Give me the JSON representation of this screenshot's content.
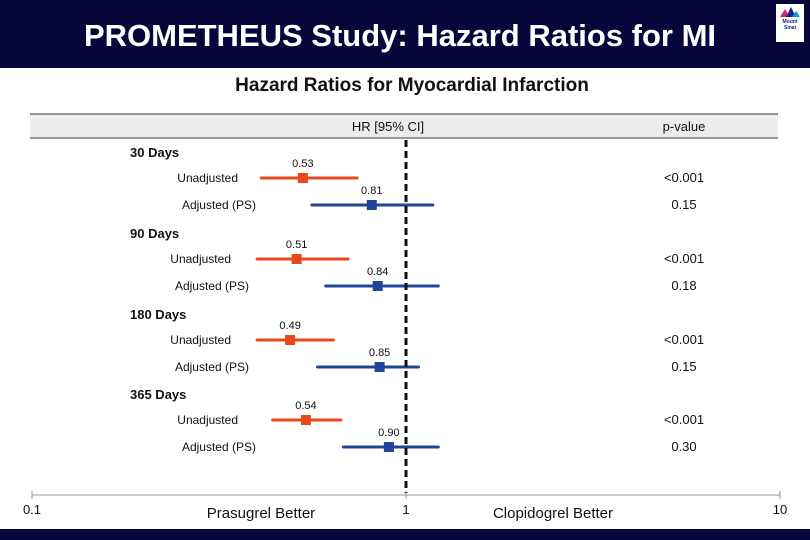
{
  "slide": {
    "title": "PROMETHEUS Study: Hazard Ratios for MI",
    "logo_text": "Mount Sinai"
  },
  "colors": {
    "header_bg": "#06063a",
    "unadjusted": "#e8481c",
    "adjusted": "#1f4596",
    "table_header_bg": "#ececec"
  },
  "chart_data": {
    "type": "forest",
    "title": "Hazard Ratios for Myocardial Infarction",
    "column_headers": {
      "estimate": "HR [95% CI]",
      "pvalue": "p-value"
    },
    "x_scale": "log",
    "xlim": [
      0.1,
      10
    ],
    "x_ticks": [
      {
        "value": 0.1,
        "label": "0.1"
      },
      {
        "value": 1,
        "label": "1"
      },
      {
        "value": 10,
        "label": "10"
      }
    ],
    "reference_line": 1,
    "left_annotation": "Prasugrel Better",
    "right_annotation": "Clopidogrel Better",
    "groups": [
      {
        "label": "30 Days",
        "rows": [
          {
            "label": "Unadjusted",
            "series": "unadjusted",
            "hr": 0.53,
            "hr_label": "0.53",
            "ci": [
              0.41,
              0.74
            ],
            "p": "<0.001"
          },
          {
            "label": "Adjusted (PS)",
            "series": "adjusted",
            "hr": 0.81,
            "hr_label": "0.81",
            "ci": [
              0.56,
              1.18
            ],
            "p": "0.15"
          }
        ]
      },
      {
        "label": "90 Days",
        "rows": [
          {
            "label": "Unadjusted",
            "series": "unadjusted",
            "hr": 0.51,
            "hr_label": "0.51",
            "ci": [
              0.4,
              0.7
            ],
            "p": "<0.001"
          },
          {
            "label": "Adjusted (PS)",
            "series": "adjusted",
            "hr": 0.84,
            "hr_label": "0.84",
            "ci": [
              0.61,
              1.22
            ],
            "p": "0.18"
          }
        ]
      },
      {
        "label": "180 Days",
        "rows": [
          {
            "label": "Unadjusted",
            "series": "unadjusted",
            "hr": 0.49,
            "hr_label": "0.49",
            "ci": [
              0.4,
              0.64
            ],
            "p": "<0.001"
          },
          {
            "label": "Adjusted (PS)",
            "series": "adjusted",
            "hr": 0.85,
            "hr_label": "0.85",
            "ci": [
              0.58,
              1.08
            ],
            "p": "0.15"
          }
        ]
      },
      {
        "label": "365 Days",
        "rows": [
          {
            "label": "Unadjusted",
            "series": "unadjusted",
            "hr": 0.54,
            "hr_label": "0.54",
            "ci": [
              0.44,
              0.67
            ],
            "p": "<0.001"
          },
          {
            "label": "Adjusted (PS)",
            "series": "adjusted",
            "hr": 0.9,
            "hr_label": "0.90",
            "ci": [
              0.68,
              1.22
            ],
            "p": "0.30"
          }
        ]
      }
    ]
  }
}
